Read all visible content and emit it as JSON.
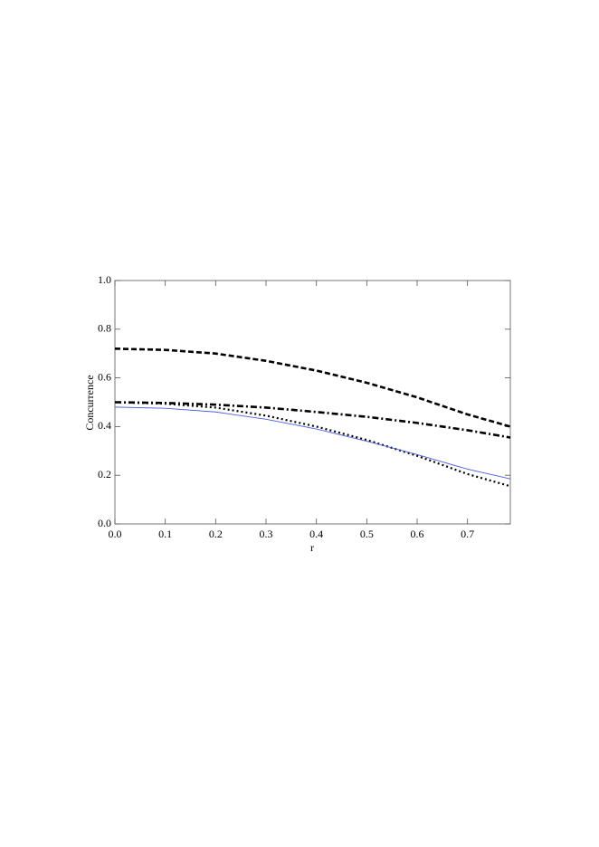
{
  "chart_data": {
    "type": "line",
    "xlabel": "r",
    "ylabel": "Concurrence",
    "x": [
      0,
      0.1,
      0.2,
      0.3,
      0.4,
      0.5,
      0.6,
      0.7,
      0.785
    ],
    "series": [
      {
        "color": "#000000",
        "style": "dashed",
        "values": [
          0.72,
          0.715,
          0.7,
          0.67,
          0.63,
          0.58,
          0.52,
          0.45,
          0.4
        ]
      },
      {
        "color": "#000000",
        "style": "dashdot",
        "values": [
          0.5,
          0.497,
          0.49,
          0.478,
          0.46,
          0.44,
          0.415,
          0.385,
          0.355
        ]
      },
      {
        "color": "#000000",
        "style": "dotted",
        "values": [
          0.5,
          0.494,
          0.478,
          0.445,
          0.4,
          0.345,
          0.28,
          0.205,
          0.155
        ]
      },
      {
        "color": "#4a5ee0",
        "style": "solid",
        "values": [
          0.48,
          0.475,
          0.46,
          0.43,
          0.39,
          0.34,
          0.285,
          0.225,
          0.185
        ]
      }
    ],
    "xlim": [
      0,
      0.785
    ],
    "xticks": [
      {
        "value": 0,
        "label": "0.0"
      },
      0.1,
      0.2,
      0.3,
      0.4,
      0.5,
      0.6,
      0.7
    ],
    "ylim": [
      0,
      1
    ],
    "yticks": [
      {
        "value": 0,
        "label": "0.0"
      },
      0.2,
      0.4,
      0.6,
      0.8,
      {
        "value": 1,
        "label": "1.0"
      }
    ]
  }
}
